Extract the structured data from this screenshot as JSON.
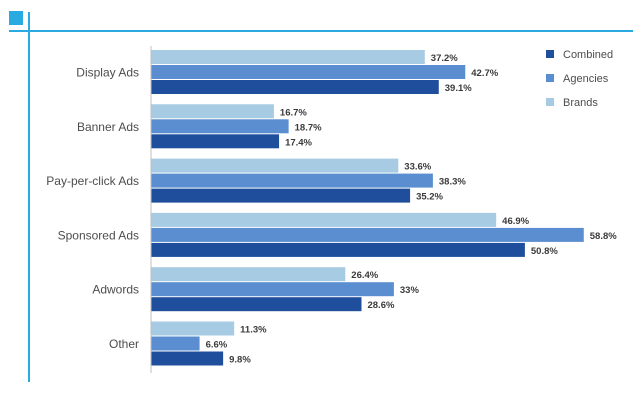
{
  "chart_data": {
    "type": "bar",
    "orientation": "horizontal",
    "categories": [
      "Display Ads",
      "Banner Ads",
      "Pay-per-click Ads",
      "Sponsored Ads",
      "Adwords",
      "Other"
    ],
    "series": [
      {
        "name": "Brands",
        "color": "#a6cbe3",
        "values": [
          37.2,
          16.7,
          33.6,
          46.9,
          26.4,
          11.3
        ],
        "labels": [
          "37.2%",
          "16.7%",
          "33.6%",
          "46.9%",
          "26.4%",
          "11.3%"
        ]
      },
      {
        "name": "Agencies",
        "color": "#5a8ed0",
        "values": [
          42.7,
          18.7,
          38.3,
          58.8,
          33,
          6.6
        ],
        "labels": [
          "42.7%",
          "18.7%",
          "38.3%",
          "58.8%",
          "33%",
          "6.6%"
        ]
      },
      {
        "name": "Combined",
        "color": "#1f4e9c",
        "values": [
          39.1,
          17.4,
          35.2,
          50.8,
          28.6,
          9.8
        ],
        "labels": [
          "39.1%",
          "17.4%",
          "35.2%",
          "50.8%",
          "28.6%",
          "9.8%"
        ]
      }
    ],
    "legend": {
      "placement": "top-right",
      "order": [
        "Combined",
        "Agencies",
        "Brands"
      ]
    },
    "xlim": [
      0,
      60
    ],
    "grid": false
  },
  "frame": {
    "accent_color": "#29abe2"
  }
}
